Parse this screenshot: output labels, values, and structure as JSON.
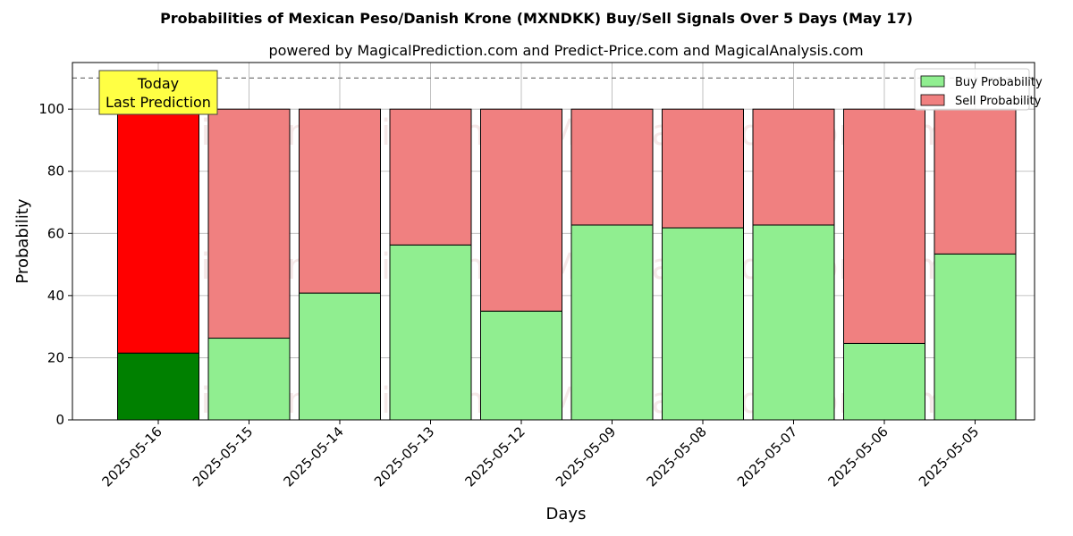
{
  "chart_data": {
    "type": "bar",
    "stacked": true,
    "title": "Probabilities of Mexican Peso/Danish Krone (MXNDKK) Buy/Sell Signals Over 5 Days (May 17)",
    "subtitle": "powered by MagicalPrediction.com and Predict-Price.com and MagicalAnalysis.com",
    "xlabel": "Days",
    "ylabel": "Probability",
    "ylim": [
      0,
      115
    ],
    "yticks": [
      0,
      20,
      40,
      60,
      80,
      100
    ],
    "reference_line": 110,
    "grid": true,
    "legend_position": "top-right",
    "categories": [
      "2025-05-16",
      "2025-05-15",
      "2025-05-14",
      "2025-05-13",
      "2025-05-12",
      "2025-05-09",
      "2025-05-08",
      "2025-05-07",
      "2025-05-06",
      "2025-05-05"
    ],
    "series": [
      {
        "name": "Buy Probability",
        "values": [
          21.5,
          26.3,
          40.8,
          56.3,
          35.0,
          62.7,
          61.8,
          62.7,
          24.6,
          53.4
        ],
        "color": "#90ee90",
        "highlight_color": "#008000"
      },
      {
        "name": "Sell Probability",
        "values": [
          78.5,
          73.7,
          59.2,
          43.7,
          65.0,
          37.3,
          38.2,
          37.3,
          75.4,
          46.6
        ],
        "color": "#f08080",
        "highlight_color": "#ff0000"
      }
    ],
    "annotation": {
      "lines": [
        "Today",
        "Last Prediction"
      ],
      "category": "2025-05-16",
      "fill": "#ffff44"
    },
    "watermarks": [
      "MagicalAnalysis.com",
      "MagicalPrediction.com"
    ]
  }
}
